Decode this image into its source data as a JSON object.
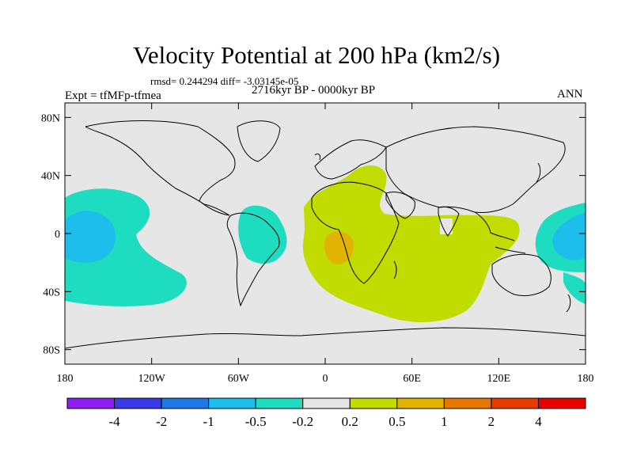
{
  "title": "Velocity Potential at 200 hPa (km2/s)",
  "stats": "rmsd= 0.244294 diff= -3.03145e-05",
  "experiment": "Expt = tfMFp-tfmea",
  "period": "2716kyr BP - 0000kyr BP",
  "season": "ANN",
  "lat_labels": [
    "80N",
    "40N",
    "0",
    "40S",
    "80S"
  ],
  "lat_values": [
    80,
    40,
    0,
    -40,
    -80
  ],
  "lon_labels": [
    "180",
    "120W",
    "60W",
    "0",
    "60E",
    "120E",
    "180"
  ],
  "lon_values": [
    -180,
    -120,
    -60,
    0,
    60,
    120,
    180
  ],
  "colorbar": {
    "colors": [
      "#8d1ef0",
      "#3a3ae6",
      "#1e78e6",
      "#1ebeec",
      "#1edcc0",
      "#e6e6e6",
      "#c0dc00",
      "#e0b400",
      "#e67800",
      "#e63c00",
      "#e60000"
    ],
    "labels": [
      "-4",
      "-2",
      "-1",
      "-0.5",
      "-0.2",
      "0.2",
      "0.5",
      "1",
      "2",
      "4"
    ]
  },
  "map_colors": {
    "background": "#e6e6e6",
    "neg_weak": "#1edcc0",
    "neg_mid": "#1ebeec",
    "pos_weak": "#c0dc00",
    "pos_mid": "#e0b400"
  }
}
